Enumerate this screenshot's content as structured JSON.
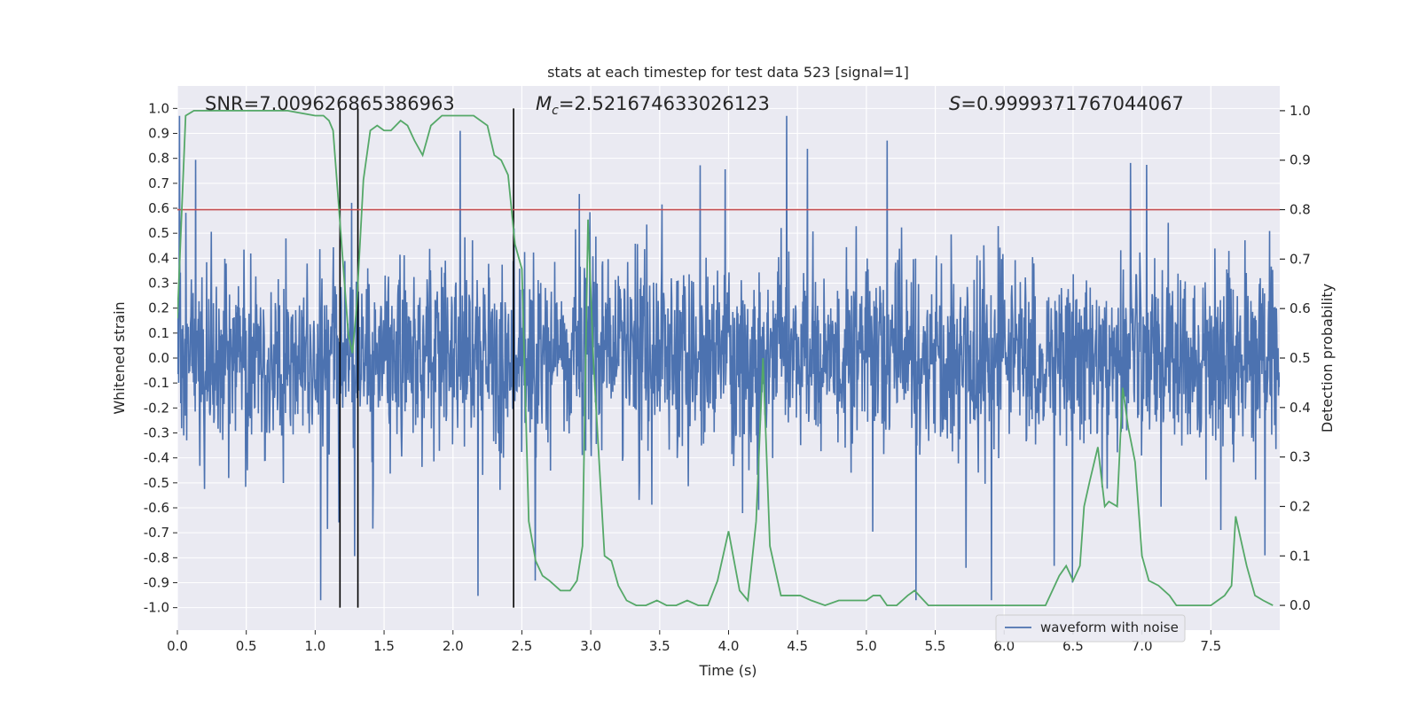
{
  "chart_data": {
    "type": "line",
    "title": "stats at each timestep for test data 523 [signal=1]",
    "xlabel": "Time (s)",
    "ylabel": "Whitened strain",
    "y2label": "Detection probability",
    "xlim": [
      0.0,
      8.0
    ],
    "ylim": [
      -1.09,
      1.09
    ],
    "y2lim": [
      -0.05,
      1.05
    ],
    "x_ticks": [
      0.0,
      0.5,
      1.0,
      1.5,
      2.0,
      2.5,
      3.0,
      3.5,
      4.0,
      4.5,
      5.0,
      5.5,
      6.0,
      6.5,
      7.0,
      7.5
    ],
    "x_tick_labels": [
      "0.0",
      "0.5",
      "1.0",
      "1.5",
      "2.0",
      "2.5",
      "3.0",
      "3.5",
      "4.0",
      "4.5",
      "5.0",
      "5.5",
      "6.0",
      "6.5",
      "7.0",
      "7.5"
    ],
    "y_ticks": [
      1.0,
      0.9,
      0.8,
      0.7,
      0.6,
      0.5,
      0.4,
      0.3,
      0.2,
      0.1,
      0.0,
      -0.1,
      -0.2,
      -0.3,
      -0.4,
      -0.5,
      -0.6,
      -0.7,
      -0.8,
      -0.9,
      -1.0
    ],
    "y_tick_labels": [
      "1.0",
      "0.9",
      "0.8",
      "0.7",
      "0.6",
      "0.5",
      "0.4",
      "0.3",
      "0.2",
      "0.1",
      "0.0",
      "-0.1",
      "-0.2",
      "-0.3",
      "-0.4",
      "-0.5",
      "-0.6",
      "-0.7",
      "-0.8",
      "-0.9",
      "-1.0"
    ],
    "y2_ticks": [
      1.0,
      0.9,
      0.8,
      0.7,
      0.6,
      0.5,
      0.4,
      0.3,
      0.2,
      0.1,
      0.0
    ],
    "y2_tick_labels": [
      "1.0",
      "0.9",
      "0.8",
      "0.7",
      "0.6",
      "0.5",
      "0.4",
      "0.3",
      "0.2",
      "0.1",
      "0.0"
    ],
    "annotations": {
      "snr": "SNR=7.009626865386963",
      "mc_symbol": "M",
      "mc_sub": "c",
      "mc_value": "=2.521674633026123",
      "s_symbol": "S",
      "s_value": "=0.9999371767044067"
    },
    "threshold": {
      "value": 0.8,
      "axis": "y2",
      "color": "#c44e52"
    },
    "vertical_markers": [
      1.18,
      1.31,
      2.44
    ],
    "marker_range": [
      -1.0,
      1.0
    ],
    "legend": {
      "label": "waveform with noise",
      "placement": "lower-right"
    },
    "series": [
      {
        "name": "waveform with noise",
        "axis": "y",
        "color": "#4c72b0",
        "description": "dense noisy strain trace",
        "seed": 523
      },
      {
        "name": "detection probability",
        "axis": "y2",
        "color": "#55a868",
        "x": [
          0.0,
          0.06,
          0.12,
          0.2,
          0.3,
          0.45,
          0.6,
          0.8,
          1.0,
          1.06,
          1.1,
          1.13,
          1.2,
          1.24,
          1.27,
          1.3,
          1.35,
          1.4,
          1.45,
          1.5,
          1.55,
          1.62,
          1.67,
          1.72,
          1.78,
          1.84,
          1.92,
          2.0,
          2.08,
          2.15,
          2.25,
          2.3,
          2.35,
          2.4,
          2.45,
          2.5,
          2.55,
          2.6,
          2.65,
          2.7,
          2.78,
          2.85,
          2.9,
          2.94,
          2.98,
          3.02,
          3.1,
          3.15,
          3.2,
          3.26,
          3.33,
          3.4,
          3.48,
          3.55,
          3.62,
          3.7,
          3.78,
          3.85,
          3.92,
          4.0,
          4.08,
          4.14,
          4.2,
          4.25,
          4.3,
          4.38,
          4.45,
          4.52,
          4.6,
          4.7,
          4.8,
          4.85,
          4.95,
          5.0,
          5.05,
          5.1,
          5.15,
          5.22,
          5.3,
          5.35,
          5.45,
          5.55,
          5.65,
          5.8,
          6.0,
          6.1,
          6.2,
          6.3,
          6.4,
          6.45,
          6.5,
          6.55,
          6.58,
          6.62,
          6.68,
          6.73,
          6.76,
          6.82,
          6.86,
          6.9,
          6.95,
          7.0,
          7.05,
          7.12,
          7.2,
          7.25,
          7.3,
          7.35,
          7.42,
          7.5,
          7.55,
          7.6,
          7.65,
          7.68,
          7.72,
          7.76,
          7.82,
          7.88,
          7.95
        ],
        "y": [
          0.58,
          0.99,
          1.0,
          1.0,
          1.0,
          1.0,
          1.0,
          1.0,
          0.99,
          0.99,
          0.98,
          0.96,
          0.7,
          0.55,
          0.51,
          0.6,
          0.86,
          0.96,
          0.97,
          0.96,
          0.96,
          0.98,
          0.97,
          0.94,
          0.91,
          0.97,
          0.99,
          0.99,
          0.99,
          0.99,
          0.97,
          0.91,
          0.9,
          0.87,
          0.73,
          0.68,
          0.17,
          0.09,
          0.06,
          0.05,
          0.03,
          0.03,
          0.05,
          0.12,
          0.78,
          0.49,
          0.1,
          0.09,
          0.04,
          0.01,
          0.0,
          0.0,
          0.01,
          0.0,
          0.0,
          0.01,
          0.0,
          0.0,
          0.05,
          0.15,
          0.03,
          0.01,
          0.17,
          0.5,
          0.12,
          0.02,
          0.02,
          0.02,
          0.01,
          0.0,
          0.01,
          0.01,
          0.01,
          0.01,
          0.02,
          0.02,
          0.0,
          0.0,
          0.02,
          0.03,
          0.0,
          0.0,
          0.0,
          0.0,
          0.0,
          0.0,
          0.0,
          0.0,
          0.06,
          0.08,
          0.05,
          0.08,
          0.2,
          0.25,
          0.32,
          0.2,
          0.21,
          0.2,
          0.44,
          0.36,
          0.29,
          0.1,
          0.05,
          0.04,
          0.02,
          0.0,
          0.0,
          0.0,
          0.0,
          0.0,
          0.01,
          0.02,
          0.04,
          0.18,
          0.13,
          0.08,
          0.02,
          0.01,
          0.0
        ]
      }
    ]
  }
}
